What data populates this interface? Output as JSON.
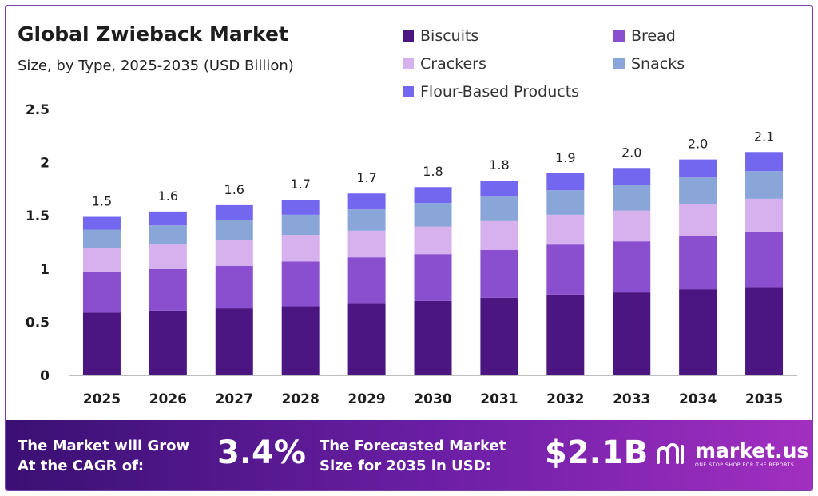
{
  "header": {
    "title": "Global Zwieback Market",
    "subtitle": "Size, by Type, 2025-2035 (USD Billion)"
  },
  "legend": [
    {
      "name": "Biscuits",
      "color": "#4b1682"
    },
    {
      "name": "Bread",
      "color": "#8a4fcf"
    },
    {
      "name": "Crackers",
      "color": "#d7b0ee"
    },
    {
      "name": "Snacks",
      "color": "#8aa6d9"
    },
    {
      "name": "Flour-Based Products",
      "color": "#7367f0"
    }
  ],
  "chart_data": {
    "type": "bar",
    "stacked": true,
    "title": "Global Zwieback Market",
    "subtitle": "Size, by Type, 2025-2035 (USD Billion)",
    "categories": [
      "2025",
      "2026",
      "2027",
      "2028",
      "2029",
      "2030",
      "2031",
      "2032",
      "2033",
      "2034",
      "2035"
    ],
    "series": [
      {
        "name": "Biscuits",
        "values": [
          0.59,
          0.61,
          0.63,
          0.65,
          0.68,
          0.7,
          0.73,
          0.76,
          0.78,
          0.81,
          0.83
        ]
      },
      {
        "name": "Bread",
        "values": [
          0.38,
          0.39,
          0.4,
          0.42,
          0.43,
          0.44,
          0.45,
          0.47,
          0.48,
          0.5,
          0.52
        ]
      },
      {
        "name": "Crackers",
        "values": [
          0.23,
          0.23,
          0.24,
          0.25,
          0.25,
          0.26,
          0.27,
          0.28,
          0.29,
          0.3,
          0.31
        ]
      },
      {
        "name": "Snacks",
        "values": [
          0.17,
          0.18,
          0.19,
          0.19,
          0.2,
          0.22,
          0.23,
          0.23,
          0.24,
          0.25,
          0.26
        ]
      },
      {
        "name": "Flour-Based Products",
        "values": [
          0.12,
          0.13,
          0.14,
          0.14,
          0.15,
          0.15,
          0.15,
          0.16,
          0.16,
          0.17,
          0.18
        ]
      }
    ],
    "totals_labels": [
      "1.5",
      "1.6",
      "1.6",
      "1.7",
      "1.7",
      "1.8",
      "1.8",
      "1.9",
      "2.0",
      "2.0",
      "2.1"
    ],
    "y_ticks": [
      "0",
      "0.5",
      "1",
      "1.5",
      "2",
      "2.5"
    ],
    "ylim": [
      0,
      2.5
    ],
    "xlabel": "",
    "ylabel": "",
    "grid": false,
    "legend_position": "top-right"
  },
  "footer": {
    "cagr_text_line1": "The Market will Grow",
    "cagr_text_line2": "At the CAGR of:",
    "cagr_value": "3.4%",
    "forecast_text_line1": "The Forecasted Market",
    "forecast_text_line2": "Size for 2035 in USD:",
    "forecast_value": "$2.1B",
    "brand_name": "market.us",
    "brand_tagline": "ONE STOP SHOP FOR THE REPORTS"
  }
}
